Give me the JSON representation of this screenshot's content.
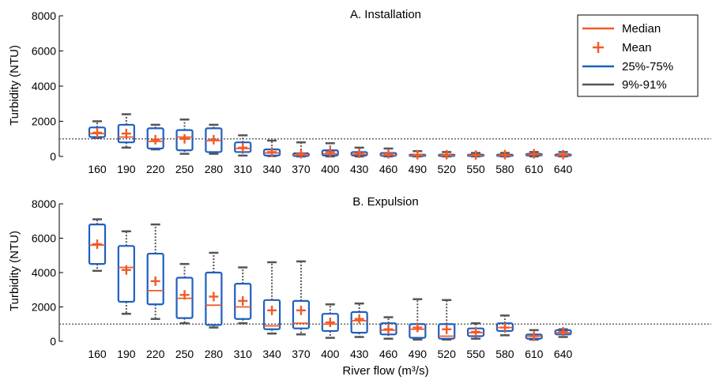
{
  "chart_data": [
    {
      "type": "box",
      "title": "A. Installation",
      "xlabel": "",
      "ylabel": "Turbidity (NTU)",
      "ylim": [
        0,
        8000
      ],
      "yticks": [
        0,
        2000,
        4000,
        6000,
        8000
      ],
      "reference_line": 1000,
      "legend": {
        "placement": "top-right",
        "entries": [
          {
            "label": "Median",
            "kind": "line",
            "color": "#f05a28"
          },
          {
            "label": "Mean",
            "kind": "plus",
            "color": "#f05a28"
          },
          {
            "label": "25%-75%",
            "kind": "line",
            "color": "#1f5fbf"
          },
          {
            "label": "9%-91%",
            "kind": "line",
            "color": "#555555"
          }
        ]
      },
      "categories": [
        "160",
        "190",
        "220",
        "250",
        "280",
        "310",
        "340",
        "370",
        "400",
        "430",
        "460",
        "490",
        "520",
        "550",
        "580",
        "610",
        "640"
      ],
      "boxes": [
        {
          "w_low": 1050,
          "q1": 1100,
          "median": 1300,
          "q3": 1650,
          "w_high": 2000,
          "mean": 1350
        },
        {
          "w_low": 500,
          "q1": 800,
          "median": 1100,
          "q3": 1800,
          "w_high": 2400,
          "mean": 1300
        },
        {
          "w_low": 400,
          "q1": 450,
          "median": 850,
          "q3": 1600,
          "w_high": 1800,
          "mean": 950
        },
        {
          "w_low": 150,
          "q1": 350,
          "median": 1100,
          "q3": 1500,
          "w_high": 2100,
          "mean": 1000
        },
        {
          "w_low": 150,
          "q1": 250,
          "median": 900,
          "q3": 1600,
          "w_high": 1800,
          "mean": 950
        },
        {
          "w_low": 50,
          "q1": 250,
          "median": 450,
          "q3": 800,
          "w_high": 1200,
          "mean": 500
        },
        {
          "w_low": 20,
          "q1": 50,
          "median": 200,
          "q3": 400,
          "w_high": 900,
          "mean": 250
        },
        {
          "w_low": 0,
          "q1": 20,
          "median": 80,
          "q3": 180,
          "w_high": 800,
          "mean": 150
        },
        {
          "w_low": 0,
          "q1": 50,
          "median": 150,
          "q3": 350,
          "w_high": 750,
          "mean": 250
        },
        {
          "w_low": 0,
          "q1": 50,
          "median": 120,
          "q3": 250,
          "w_high": 500,
          "mean": 180
        },
        {
          "w_low": 0,
          "q1": 30,
          "median": 80,
          "q3": 200,
          "w_high": 450,
          "mean": 150
        },
        {
          "w_low": 0,
          "q1": 20,
          "median": 50,
          "q3": 100,
          "w_high": 300,
          "mean": 100
        },
        {
          "w_low": 0,
          "q1": 20,
          "median": 50,
          "q3": 100,
          "w_high": 250,
          "mean": 100
        },
        {
          "w_low": 0,
          "q1": 20,
          "median": 50,
          "q3": 100,
          "w_high": 200,
          "mean": 80
        },
        {
          "w_low": 0,
          "q1": 20,
          "median": 50,
          "q3": 100,
          "w_high": 200,
          "mean": 100
        },
        {
          "w_low": 0,
          "q1": 50,
          "median": 100,
          "q3": 150,
          "w_high": 250,
          "mean": 150
        },
        {
          "w_low": 0,
          "q1": 30,
          "median": 60,
          "q3": 120,
          "w_high": 250,
          "mean": 100
        }
      ]
    },
    {
      "type": "box",
      "title": "B. Expulsion",
      "xlabel": "River flow (m³/s)",
      "ylabel": "Turbidity (NTU)",
      "ylim": [
        0,
        8000
      ],
      "yticks": [
        0,
        2000,
        4000,
        6000,
        8000
      ],
      "reference_line": 1000,
      "categories": [
        "160",
        "190",
        "220",
        "250",
        "280",
        "310",
        "340",
        "370",
        "400",
        "430",
        "460",
        "490",
        "520",
        "550",
        "580",
        "610",
        "640"
      ],
      "boxes": [
        {
          "w_low": 4100,
          "q1": 4500,
          "median": 5600,
          "q3": 6800,
          "w_high": 7100,
          "mean": 5650
        },
        {
          "w_low": 1600,
          "q1": 2300,
          "median": 4300,
          "q3": 5550,
          "w_high": 6400,
          "mean": 4150
        },
        {
          "w_low": 1300,
          "q1": 2150,
          "median": 2950,
          "q3": 5100,
          "w_high": 6800,
          "mean": 3500
        },
        {
          "w_low": 1050,
          "q1": 1350,
          "median": 2500,
          "q3": 3700,
          "w_high": 4500,
          "mean": 2700
        },
        {
          "w_low": 800,
          "q1": 950,
          "median": 2100,
          "q3": 4000,
          "w_high": 5150,
          "mean": 2600
        },
        {
          "w_low": 1050,
          "q1": 1300,
          "median": 2000,
          "q3": 3350,
          "w_high": 4300,
          "mean": 2350
        },
        {
          "w_low": 450,
          "q1": 700,
          "median": 900,
          "q3": 2400,
          "w_high": 4600,
          "mean": 1800
        },
        {
          "w_low": 400,
          "q1": 750,
          "median": 1050,
          "q3": 2350,
          "w_high": 4650,
          "mean": 1800
        },
        {
          "w_low": 200,
          "q1": 600,
          "median": 1000,
          "q3": 1600,
          "w_high": 2150,
          "mean": 1100
        },
        {
          "w_low": 250,
          "q1": 500,
          "median": 1200,
          "q3": 1700,
          "w_high": 2200,
          "mean": 1300
        },
        {
          "w_low": 150,
          "q1": 400,
          "median": 650,
          "q3": 1050,
          "w_high": 1400,
          "mean": 700
        },
        {
          "w_low": 100,
          "q1": 200,
          "median": 700,
          "q3": 1000,
          "w_high": 2450,
          "mean": 800
        },
        {
          "w_low": 100,
          "q1": 150,
          "median": 300,
          "q3": 1000,
          "w_high": 2400,
          "mean": 700
        },
        {
          "w_low": 150,
          "q1": 300,
          "median": 500,
          "q3": 750,
          "w_high": 1050,
          "mean": 550
        },
        {
          "w_low": 350,
          "q1": 600,
          "median": 800,
          "q3": 1050,
          "w_high": 1500,
          "mean": 800
        },
        {
          "w_low": 100,
          "q1": 150,
          "median": 300,
          "q3": 400,
          "w_high": 650,
          "mean": 300
        },
        {
          "w_low": 250,
          "q1": 400,
          "median": 500,
          "q3": 650,
          "w_high": 700,
          "mean": 550
        }
      ]
    }
  ],
  "colors": {
    "median": "#f05a28",
    "mean": "#f05a28",
    "box": "#1f5fbf",
    "whisker": "#555555",
    "reference": "#666666",
    "axis": "#000000"
  }
}
